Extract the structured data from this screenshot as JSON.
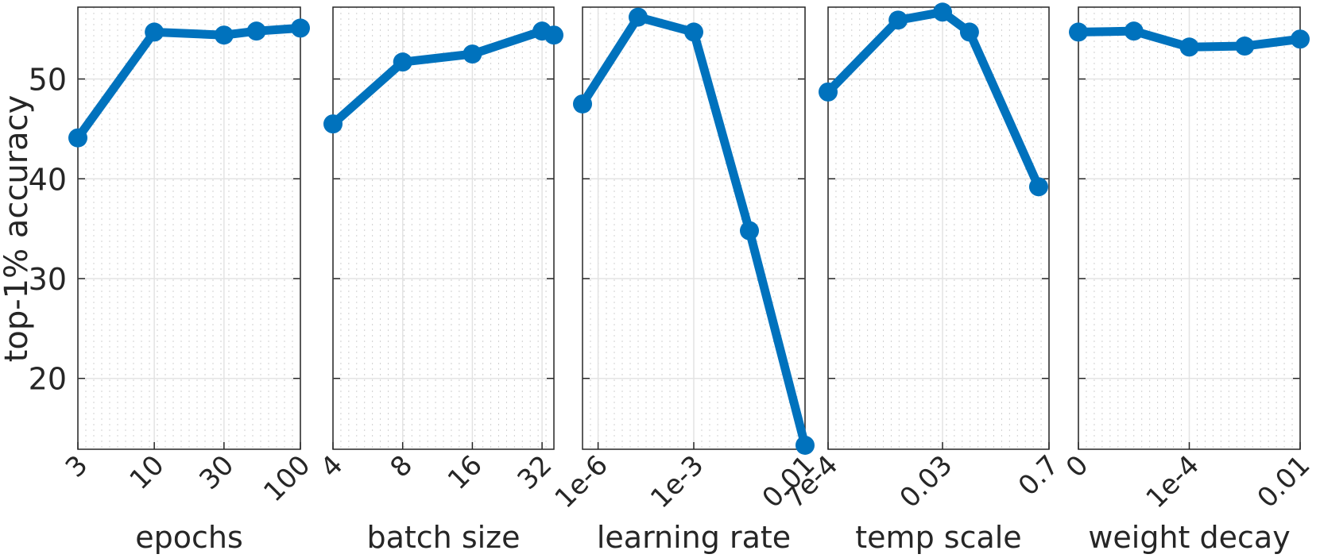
{
  "figure": {
    "ylabel": "top-1% accuracy",
    "yticks": [
      20,
      30,
      40,
      50
    ],
    "ylim": [
      12.9,
      57.2
    ],
    "line_color": "#0072BD"
  },
  "chart_data": [
    {
      "type": "line",
      "title": "",
      "xlabel": "epochs",
      "ylabel": "top-1% accuracy",
      "xscale": "log",
      "x": [
        3,
        10,
        30,
        50,
        100
      ],
      "xticks": [
        "3",
        "10",
        "30",
        "100"
      ],
      "values": [
        44.1,
        54.7,
        54.4,
        54.8,
        55.1
      ],
      "ylim": [
        12.9,
        57.2
      ],
      "grid": true
    },
    {
      "type": "line",
      "title": "",
      "xlabel": "batch size",
      "ylabel": "",
      "xscale": "log",
      "x": [
        4,
        8,
        16,
        32,
        36
      ],
      "xticks": [
        "4",
        "8",
        "16",
        "32"
      ],
      "values": [
        45.5,
        51.7,
        52.5,
        54.8,
        54.4
      ],
      "ylim": [
        12.9,
        57.2
      ],
      "grid": true
    },
    {
      "type": "line",
      "title": "",
      "xlabel": "learning rate",
      "ylabel": "",
      "xscale": "log",
      "x_positions": [
        0,
        0.25,
        0.5,
        0.75,
        1.0
      ],
      "xticks": [
        "1e-6",
        "1e-3",
        "0.01"
      ],
      "xtick_positions": [
        0.07,
        0.5,
        1.0
      ],
      "values": [
        47.5,
        56.2,
        54.7,
        34.8,
        13.3
      ],
      "ylim": [
        12.9,
        57.2
      ],
      "grid": true
    },
    {
      "type": "line",
      "title": "",
      "xlabel": "temp scale",
      "ylabel": "",
      "xscale": "log",
      "x_positions": [
        0.0,
        0.317,
        0.518,
        0.64,
        0.953
      ],
      "xticks": [
        "7e-4",
        "0.03",
        "0.7"
      ],
      "xtick_positions": [
        0.0,
        0.518,
        1.0
      ],
      "values": [
        48.7,
        55.9,
        56.7,
        54.7,
        39.2
      ],
      "ylim": [
        12.9,
        57.2
      ],
      "grid": true
    },
    {
      "type": "line",
      "title": "",
      "xlabel": "weight decay",
      "ylabel": "",
      "xscale": "log",
      "x": [
        "0",
        "1e-5",
        "1e-4",
        "1e-3",
        "0.01"
      ],
      "x_positions": [
        0.0,
        0.25,
        0.5,
        0.75,
        1.0
      ],
      "xticks": [
        "0",
        "1e-4",
        "0.01"
      ],
      "xtick_positions": [
        0.0,
        0.5,
        1.0
      ],
      "values": [
        54.7,
        54.8,
        53.2,
        53.3,
        54.0
      ],
      "ylim": [
        12.9,
        57.2
      ],
      "grid": true
    }
  ]
}
